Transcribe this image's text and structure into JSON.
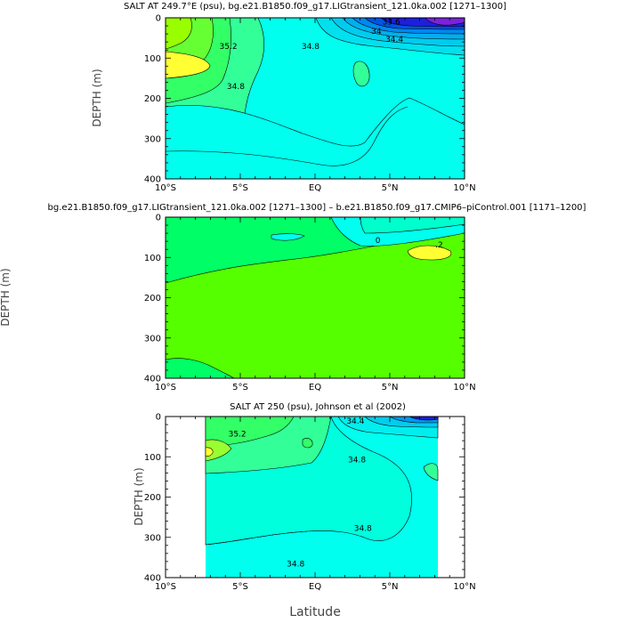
{
  "figure": {
    "xlabel": "Latitude"
  },
  "chart_data": [
    {
      "type": "contour",
      "title": "SALT AT 249.7°E (psu), bg.e21.B1850.f09_g17.LIGtransient_121.0ka.002 [1271–1300]",
      "ylabel": "DEPTH (m)",
      "x_ticks": [
        "10°S",
        "5°S",
        "EQ",
        "5°N",
        "10°N"
      ],
      "y_ticks": [
        "0",
        "100",
        "200",
        "300",
        "400"
      ],
      "xlim": [
        -10,
        10
      ],
      "ylim": [
        400,
        0
      ],
      "y_inverted": true,
      "contour_labels": [
        {
          "text": "35.2",
          "lat": -5.8,
          "depth": 75
        },
        {
          "text": "34.8",
          "lat": -0.3,
          "depth": 75
        },
        {
          "text": "34.8",
          "lat": -5.3,
          "depth": 175
        },
        {
          "text": "34.4",
          "lat": 5.3,
          "depth": 58
        },
        {
          "text": "34",
          "lat": 4.1,
          "depth": 38
        },
        {
          "text": "33.6",
          "lat": 5.1,
          "depth": 14
        }
      ],
      "colors": {
        "high": "#ffff33",
        "mid": "#33ff66",
        "base": "#00ffee",
        "low": "#1e1edc"
      }
    },
    {
      "type": "contour",
      "title": "bg.e21.B1850.f09_g17.LIGtransient_121.0ka.002 [1271–1300] – b.e21.B1850.f09_g17.CMIP6–piControl.001 [1171–1200]",
      "ylabel": "DEPTH (m)",
      "x_ticks": [
        "10°S",
        "5°S",
        "EQ",
        "5°N",
        "10°N"
      ],
      "y_ticks": [
        "0",
        "100",
        "200",
        "300",
        "400"
      ],
      "xlim": [
        -10,
        10
      ],
      "ylim": [
        400,
        0
      ],
      "y_inverted": true,
      "contour_labels": [
        {
          "text": "0",
          "lat": 4.2,
          "depth": 62
        },
        {
          "text": ".2",
          "lat": 8.3,
          "depth": 73
        }
      ],
      "colors": {
        "base": "#55ff00",
        "positive": "#ffff33",
        "negative": "#00ffee"
      }
    },
    {
      "type": "contour",
      "title": "SALT AT 250 (psu), Johnson et al (2002)",
      "ylabel": "DEPTH (m)",
      "x_ticks": [
        "10°S",
        "5°S",
        "EQ",
        "5°N",
        "10°N"
      ],
      "y_ticks": [
        "0",
        "100",
        "200",
        "300",
        "400"
      ],
      "xlim": [
        -10,
        10
      ],
      "ylim": [
        400,
        0
      ],
      "y_inverted": true,
      "data_lat_range": [
        -8,
        8
      ],
      "contour_labels": [
        {
          "text": "35.2",
          "lat": -5.2,
          "depth": 47
        },
        {
          "text": "34.4",
          "lat": 2.7,
          "depth": 15
        },
        {
          "text": "34.8",
          "lat": 2.8,
          "depth": 112
        },
        {
          "text": "34.8",
          "lat": 3.2,
          "depth": 282
        },
        {
          "text": "34.8",
          "lat": -1.3,
          "depth": 370
        }
      ],
      "colors": {
        "high": "#ffff33",
        "mid": "#33ff66",
        "base": "#00ffee",
        "low": "#1e1edc"
      }
    }
  ]
}
